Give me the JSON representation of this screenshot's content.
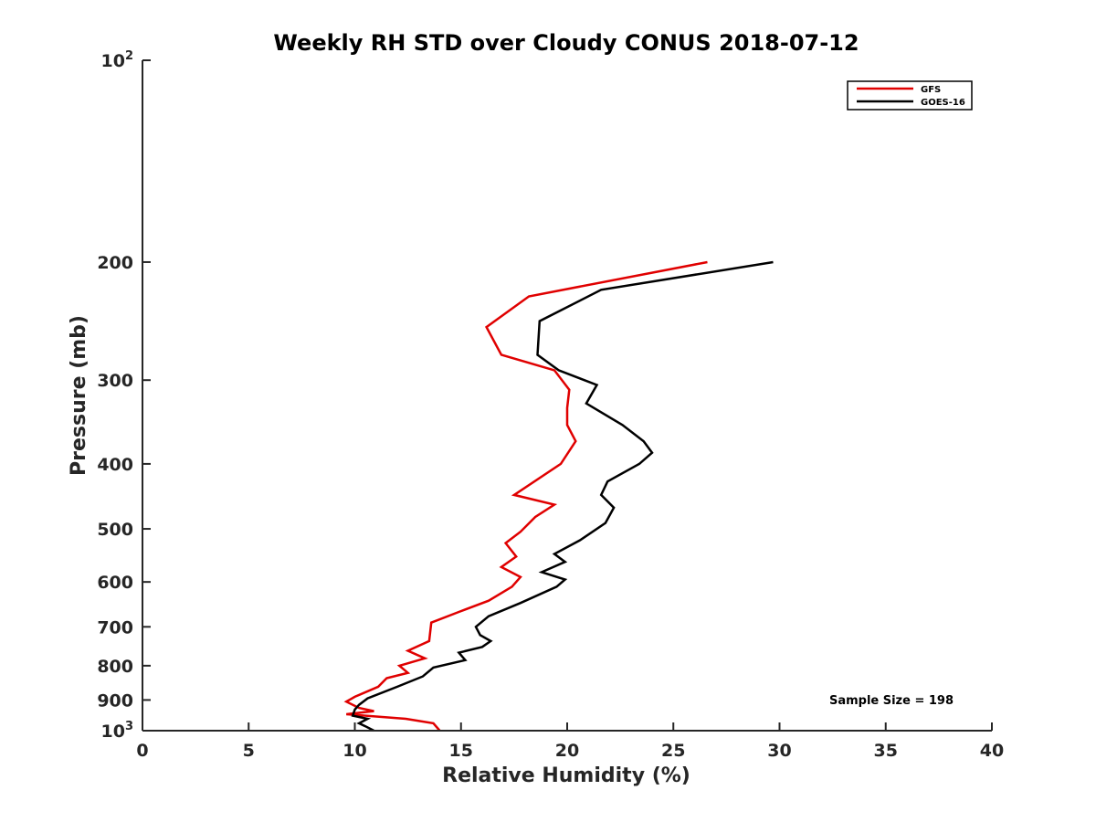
{
  "chart_data": {
    "type": "line",
    "title": "Weekly RH STD over Cloudy CONUS 2018-07-12",
    "xlabel": "Relative Humidity (%)",
    "ylabel": "Pressure (mb)",
    "xlim": [
      0,
      40
    ],
    "ylim": [
      100,
      1000
    ],
    "y_scale": "log",
    "y_reversed": true,
    "grid": false,
    "legend_position": "top-right",
    "x_ticks": [
      "0",
      "5",
      "10",
      "15",
      "20",
      "25",
      "30",
      "35",
      "40"
    ],
    "y_ticks": [
      {
        "value": 100,
        "base": "10",
        "exp": "2"
      },
      {
        "value": 200,
        "label": "200"
      },
      {
        "value": 300,
        "label": "300"
      },
      {
        "value": 400,
        "label": "400"
      },
      {
        "value": 500,
        "label": "500"
      },
      {
        "value": 600,
        "label": "600"
      },
      {
        "value": 700,
        "label": "700"
      },
      {
        "value": 800,
        "label": "800"
      },
      {
        "value": 900,
        "label": "900"
      },
      {
        "value": 1000,
        "base": "10",
        "exp": "3"
      }
    ],
    "annotation": "Sample Size = 198",
    "series": [
      {
        "name": "GFS",
        "color": "#e00000",
        "points": [
          [
            26.6,
            200
          ],
          [
            18.2,
            225
          ],
          [
            16.2,
            250
          ],
          [
            16.9,
            275
          ],
          [
            19.4,
            290
          ],
          [
            20.1,
            310
          ],
          [
            20.0,
            330
          ],
          [
            20.0,
            350
          ],
          [
            20.4,
            370
          ],
          [
            19.7,
            400
          ],
          [
            17.5,
            445
          ],
          [
            19.4,
            460
          ],
          [
            18.5,
            480
          ],
          [
            17.8,
            505
          ],
          [
            17.1,
            525
          ],
          [
            17.6,
            550
          ],
          [
            16.9,
            570
          ],
          [
            17.8,
            590
          ],
          [
            17.4,
            610
          ],
          [
            16.3,
            640
          ],
          [
            14.9,
            665
          ],
          [
            13.6,
            690
          ],
          [
            13.5,
            735
          ],
          [
            12.5,
            760
          ],
          [
            13.3,
            780
          ],
          [
            12.1,
            800
          ],
          [
            12.5,
            820
          ],
          [
            11.5,
            835
          ],
          [
            11.1,
            860
          ],
          [
            10.0,
            890
          ],
          [
            9.6,
            905
          ],
          [
            10.2,
            925
          ],
          [
            10.9,
            935
          ],
          [
            9.6,
            945
          ],
          [
            12.4,
            960
          ],
          [
            13.7,
            975
          ],
          [
            14.0,
            1000
          ]
        ]
      },
      {
        "name": "GOES-16",
        "color": "#000000",
        "points": [
          [
            29.7,
            200
          ],
          [
            21.6,
            220
          ],
          [
            18.7,
            245
          ],
          [
            18.6,
            275
          ],
          [
            19.6,
            290
          ],
          [
            21.4,
            305
          ],
          [
            20.9,
            325
          ],
          [
            22.6,
            350
          ],
          [
            23.6,
            370
          ],
          [
            24.0,
            385
          ],
          [
            23.4,
            400
          ],
          [
            21.9,
            425
          ],
          [
            21.6,
            445
          ],
          [
            22.2,
            465
          ],
          [
            21.8,
            490
          ],
          [
            20.6,
            520
          ],
          [
            19.4,
            545
          ],
          [
            19.9,
            560
          ],
          [
            18.8,
            580
          ],
          [
            19.9,
            595
          ],
          [
            19.5,
            610
          ],
          [
            17.8,
            645
          ],
          [
            16.3,
            675
          ],
          [
            15.7,
            700
          ],
          [
            15.9,
            720
          ],
          [
            16.4,
            735
          ],
          [
            16.0,
            750
          ],
          [
            14.9,
            765
          ],
          [
            15.2,
            785
          ],
          [
            13.7,
            805
          ],
          [
            13.2,
            830
          ],
          [
            12.0,
            860
          ],
          [
            10.6,
            895
          ],
          [
            10.2,
            915
          ],
          [
            10.0,
            930
          ],
          [
            9.9,
            950
          ],
          [
            10.6,
            960
          ],
          [
            10.2,
            975
          ],
          [
            10.5,
            985
          ],
          [
            10.9,
            1000
          ]
        ]
      }
    ]
  }
}
